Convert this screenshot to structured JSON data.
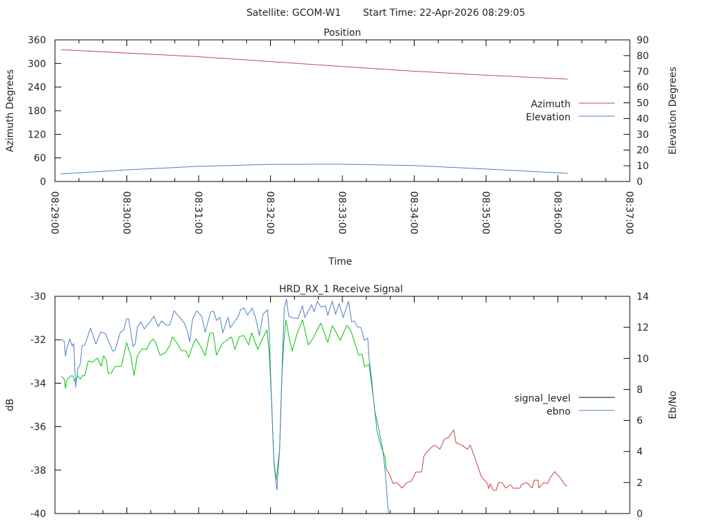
{
  "header": {
    "satellite_label": "Satellite: GCOM-W1",
    "start_time_label": "Start Time: 22-Apr-2026 08:29:05"
  },
  "chart_data": [
    {
      "type": "line",
      "title": "Position",
      "xlabel": "Time",
      "ylabel": "Azimuth Degrees",
      "y2label": "Elevation Degrees",
      "x_unit": "seconds after 08:29:00",
      "xlim": [
        0,
        480
      ],
      "xtick_labels": [
        "08:29:00",
        "08:30:00",
        "08:31:00",
        "08:32:00",
        "08:33:00",
        "08:34:00",
        "08:35:00",
        "08:36:00",
        "08:37:00"
      ],
      "xtick_major_step": 60,
      "xtick_minor_step": 20,
      "ylim": [
        0,
        360
      ],
      "yticks": [
        0,
        60,
        120,
        180,
        240,
        300,
        360
      ],
      "y2lim": [
        0,
        90
      ],
      "y2ticks": [
        0,
        10,
        20,
        30,
        40,
        50,
        60,
        70,
        80,
        90
      ],
      "grid": false,
      "legend": "right-middle",
      "series": [
        {
          "name": "Azimuth",
          "axis": "y",
          "color": "#c04a4a",
          "x": [
            4.7,
            119,
            178.9,
            238.9,
            298.9,
            358.8,
            428.1
          ],
          "y": [
            335.2,
            317.3,
            305.2,
            292.5,
            280.4,
            270.6,
            260.2
          ]
        },
        {
          "name": "Elevation",
          "axis": "y2",
          "color": "#4a7cc4",
          "x": [
            4.7,
            59,
            119,
            178.9,
            238.9,
            298.9,
            358.8,
            428.1
          ],
          "y": [
            4.8,
            7.4,
            9.6,
            10.9,
            11.0,
            10.2,
            8.0,
            5.2
          ]
        }
      ]
    },
    {
      "type": "line",
      "title": "HRD_RX_1 Receive Signal",
      "xlabel": "",
      "ylabel": "dB",
      "y2label": "Eb/No",
      "x_unit": "seconds after 08:29:00",
      "xlim": [
        0,
        480
      ],
      "xtick_major_step": 60,
      "xtick_minor_step": 20,
      "ylim": [
        -40,
        -30
      ],
      "yticks": [
        -40,
        -38,
        -36,
        -34,
        -32,
        -30
      ],
      "y2lim": [
        0,
        14
      ],
      "y2ticks": [
        0,
        2,
        4,
        6,
        8,
        10,
        12,
        14
      ],
      "grid": false,
      "legend": "right-middle",
      "series": [
        {
          "name": "signal_level",
          "axis": "y",
          "legend_color": "#000000",
          "color_locked": "#00c000",
          "color_unlocked": "#c04040",
          "locked_until": 278.5,
          "x": [
            5.4,
            7.7,
            8.8,
            9.6,
            13.4,
            14.9,
            16.3,
            19.1,
            21.1,
            22.6,
            24.9,
            27.8,
            31.6,
            35.4,
            38.7,
            40.7,
            43.1,
            44.4,
            46.9,
            49.8,
            55.5,
            59.7,
            63.2,
            66.0,
            68.9,
            72.7,
            76.6,
            79.4,
            81.9,
            84.2,
            87.7,
            91.9,
            95.7,
            98.0,
            102.4,
            105.3,
            109.1,
            111.6,
            114.8,
            117.7,
            121.5,
            125.4,
            129.2,
            132.1,
            134.9,
            139.7,
            142.6,
            147.4,
            150.2,
            154.1,
            157.9,
            161.7,
            164.2,
            169.4,
            173.2,
            177.0,
            178.9,
            180.9,
            182.8,
            184.7,
            187.6,
            189.5,
            191.0,
            192.9,
            195.2,
            198.1,
            201.9,
            206.7,
            211.5,
            215.3,
            222.0,
            227.8,
            231.6,
            238.3,
            243.6,
            246.9,
            253.6,
            256.5,
            258.4,
            262.2,
            266.0,
            268.9,
            271.8,
            275.6,
            276.5,
            279.4,
            282.3,
            285.5,
            289.9,
            293.8,
            297.6,
            301.4,
            306.2,
            308.1,
            311.0,
            314.8,
            317.3,
            321.5,
            325.4,
            328.8,
            333.0,
            334.9,
            339.7,
            344.5,
            346.8,
            350.2,
            356.0,
            361.3,
            362.1,
            363.6,
            365.9,
            368.4,
            370.3,
            373.2,
            376.6,
            380.5,
            382.4,
            388.5,
            389.4,
            394.2,
            398.4,
            400.3,
            403.4,
            404.2,
            408.0,
            411.5,
            413.4,
            417.2,
            422.0,
            425.3,
            427.7
          ],
          "y": [
            -33.66,
            -33.82,
            -34.24,
            -33.87,
            -33.66,
            -33.66,
            -33.92,
            -33.66,
            -33.82,
            -33.66,
            -33.66,
            -32.97,
            -33.03,
            -32.84,
            -33.22,
            -32.73,
            -32.97,
            -33.55,
            -33.55,
            -33.24,
            -33.22,
            -32.13,
            -32.71,
            -33.64,
            -32.71,
            -32.42,
            -32.45,
            -32.1,
            -31.97,
            -32.13,
            -32.71,
            -32.61,
            -32.29,
            -31.87,
            -32.18,
            -32.5,
            -32.5,
            -32.82,
            -32.29,
            -31.95,
            -32.29,
            -32.73,
            -31.71,
            -31.68,
            -32.71,
            -32.18,
            -32.06,
            -31.87,
            -32.45,
            -31.85,
            -31.81,
            -32.24,
            -31.68,
            -32.45,
            -31.95,
            -31.55,
            -32.61,
            -34.82,
            -37.56,
            -38.46,
            -37.04,
            -33.66,
            -32.18,
            -31.08,
            -31.81,
            -32.52,
            -31.76,
            -31.08,
            -32.24,
            -31.95,
            -31.23,
            -32.13,
            -31.34,
            -32.03,
            -31.34,
            -31.55,
            -32.71,
            -32.66,
            -33.24,
            -33.13,
            -34.72,
            -36.19,
            -36.82,
            -37.41,
            -37.93,
            -38.2,
            -38.62,
            -38.57,
            -38.83,
            -38.57,
            -38.51,
            -38.09,
            -38.09,
            -37.35,
            -37.14,
            -36.93,
            -36.85,
            -37.04,
            -36.56,
            -36.49,
            -36.14,
            -36.74,
            -36.85,
            -37.04,
            -36.85,
            -37.35,
            -38.3,
            -38.62,
            -38.85,
            -38.62,
            -38.93,
            -38.93,
            -38.57,
            -38.57,
            -38.83,
            -38.67,
            -38.83,
            -38.83,
            -38.67,
            -38.57,
            -38.83,
            -38.46,
            -38.46,
            -38.83,
            -38.57,
            -38.62,
            -38.36,
            -38.07,
            -38.36,
            -38.64,
            -38.74
          ]
        },
        {
          "name": "ebno",
          "axis": "y2",
          "color": "#4a7cc4",
          "x": [
            5.4,
            7.7,
            8.8,
            9.6,
            12.4,
            14.4,
            15.7,
            17.2,
            19.1,
            21.1,
            22.6,
            24.9,
            29.7,
            34.1,
            38.3,
            42.1,
            48.2,
            50.1,
            54.5,
            57.4,
            59.7,
            61.6,
            65.1,
            67.0,
            68.9,
            71.8,
            74.6,
            78.5,
            82.7,
            86.1,
            89.0,
            92.8,
            95.7,
            99.5,
            103.3,
            108.1,
            111.0,
            112.5,
            114.8,
            118.3,
            122.5,
            125.4,
            130.1,
            132.4,
            134.9,
            137.8,
            140.1,
            144.5,
            146.4,
            153.1,
            155.0,
            157.9,
            160.8,
            164.6,
            167.5,
            170.7,
            173.8,
            177.6,
            178.9,
            180.9,
            182.8,
            185.3,
            187.6,
            189.9,
            191.4,
            193.3,
            195.2,
            199.0,
            202.9,
            206.7,
            208.6,
            214.4,
            216.3,
            219.1,
            222.0,
            225.8,
            227.8,
            231.6,
            234.4,
            237.3,
            240.8,
            245.0,
            247.8,
            249.8,
            252.6,
            255.5,
            258.4,
            261.2,
            262.2,
            264.1,
            267.0,
            269.9,
            273.7,
            275.6,
            278.5
          ],
          "y": [
            11.24,
            11.09,
            10.13,
            10.58,
            11.24,
            10.8,
            10.95,
            8.14,
            9.34,
            9.62,
            10.8,
            10.87,
            11.95,
            10.95,
            11.71,
            11.61,
            10.47,
            10.5,
            11.68,
            11.83,
            12.54,
            12.54,
            10.77,
            10.94,
            12.05,
            12.35,
            11.9,
            12.27,
            12.72,
            12.05,
            12.42,
            12.15,
            12.15,
            13.06,
            12.72,
            12.27,
            11.61,
            11.06,
            12.49,
            13.06,
            12.72,
            11.68,
            13.01,
            13.04,
            12.45,
            12.64,
            11.65,
            12.64,
            11.98,
            12.72,
            13.16,
            13.23,
            12.79,
            13.23,
            12.64,
            11.46,
            12.86,
            13.13,
            11.68,
            7.1,
            3.26,
            1.52,
            4.15,
            9.91,
            13.16,
            13.82,
            12.72,
            12.6,
            12.57,
            13.38,
            12.64,
            13.45,
            13.01,
            13.68,
            13.31,
            13.38,
            12.79,
            13.68,
            12.86,
            13.53,
            12.64,
            13.68,
            12.35,
            12.42,
            12.05,
            11.98,
            11.17,
            11.31,
            10.06,
            8.88,
            6.66,
            5.63,
            4.15,
            2.82,
            0
          ]
        }
      ]
    }
  ]
}
